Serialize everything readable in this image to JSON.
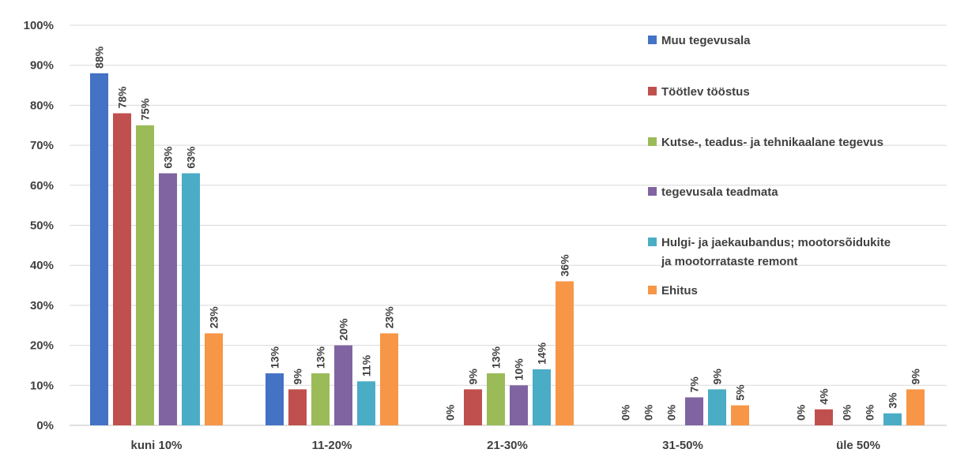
{
  "chart_data": {
    "type": "bar",
    "categories": [
      "kuni 10%",
      "11-20%",
      "21-30%",
      "31-50%",
      "üle 50%"
    ],
    "ylim": [
      0,
      100
    ],
    "yticks": [
      "0%",
      "10%",
      "20%",
      "30%",
      "40%",
      "50%",
      "60%",
      "70%",
      "80%",
      "90%",
      "100%"
    ],
    "grid": true,
    "legend_position": "right",
    "series": [
      {
        "name": "Muu tegevusala",
        "color": "#4472C4",
        "values": [
          88,
          13,
          0,
          0,
          0
        ],
        "labels": [
          "88%",
          "13%",
          "0%",
          "0%",
          "0%"
        ]
      },
      {
        "name": "Töötlev tööstus",
        "color": "#C0504D",
        "values": [
          78,
          9,
          9,
          0,
          4
        ],
        "labels": [
          "78%",
          "9%",
          "9%",
          "0%",
          "4%"
        ]
      },
      {
        "name": "Kutse-, teadus- ja tehnikaalane tegevus",
        "color": "#9BBB59",
        "values": [
          75,
          13,
          13,
          0,
          0
        ],
        "labels": [
          "75%",
          "13%",
          "13%",
          "0%",
          "0%"
        ]
      },
      {
        "name": "tegevusala teadmata",
        "color": "#8064A2",
        "values": [
          63,
          20,
          10,
          7,
          0
        ],
        "labels": [
          "63%",
          "20%",
          "10%",
          "7%",
          "0%"
        ]
      },
      {
        "name": "Hulgi- ja jaekaubandus; mootorsõidukite ja mootorrataste remont",
        "legend_lines": [
          "Hulgi- ja jaekaubandus; mootorsõidukite",
          "ja mootorrataste remont"
        ],
        "color": "#4BACC6",
        "values": [
          63,
          11,
          14,
          9,
          3
        ],
        "labels": [
          "63%",
          "11%",
          "14%",
          "9%",
          "3%"
        ]
      },
      {
        "name": "Ehitus",
        "color": "#F79646",
        "values": [
          23,
          23,
          36,
          5,
          9
        ],
        "labels": [
          "23%",
          "23%",
          "36%",
          "5%",
          "9%"
        ]
      }
    ]
  }
}
